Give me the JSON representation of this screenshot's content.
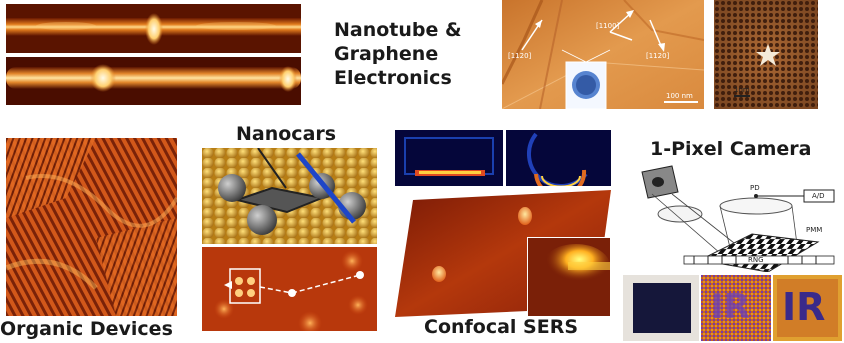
{
  "titles": {
    "nanotube_line1": "Nanotube &",
    "nanotube_line2": "Graphene",
    "nanotube_line3": "Electronics",
    "nanocars": "Nanocars",
    "one_pixel_camera": "1-Pixel Camera",
    "organic_devices": "Organic Devices",
    "confocal_sers": "Confocal SERS"
  },
  "graphene_labels": {
    "dir_top": "[1100]",
    "dir_left": "[1120]",
    "dir_right": "[1120]",
    "scale": "100 nm"
  },
  "star_scale": "1nm",
  "camera_labels": {
    "pd": "PD",
    "ad": "A/D",
    "pmm": "PMM",
    "rng": "RNG"
  },
  "ir_letters": "IR",
  "colors": {
    "afm_dark": "#5a1400",
    "afm_mid": "#c8460a",
    "afm_bright": "#ffd27a",
    "title_text": "#1a1a1a",
    "nanocar_arrow": "#1e46c8"
  }
}
